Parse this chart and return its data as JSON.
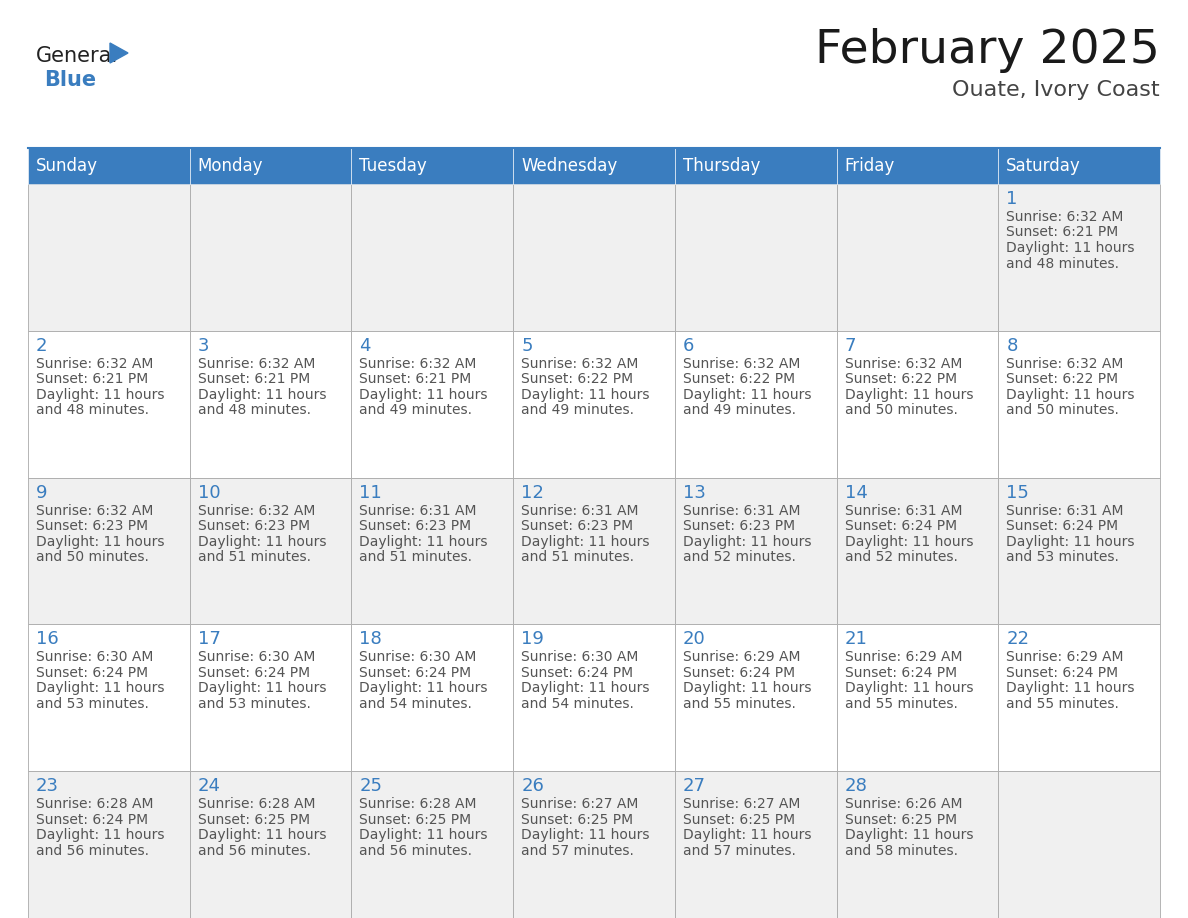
{
  "title": "February 2025",
  "subtitle": "Ouate, Ivory Coast",
  "header_color": "#3a7dbf",
  "header_text_color": "#ffffff",
  "cell_border_color": "#aaaaaa",
  "day_num_color": "#3a7dbf",
  "cell_text_color": "#555555",
  "alt_row_color": "#f0f0f0",
  "white_cell_color": "#ffffff",
  "bg_color": "#ffffff",
  "days_of_week": [
    "Sunday",
    "Monday",
    "Tuesday",
    "Wednesday",
    "Thursday",
    "Friday",
    "Saturday"
  ],
  "calendar": [
    [
      null,
      null,
      null,
      null,
      null,
      null,
      {
        "day": 1,
        "sunrise": "6:32 AM",
        "sunset": "6:21 PM",
        "daylight_h": "11 hours",
        "daylight_m": "and 48 minutes."
      }
    ],
    [
      {
        "day": 2,
        "sunrise": "6:32 AM",
        "sunset": "6:21 PM",
        "daylight_h": "11 hours",
        "daylight_m": "and 48 minutes."
      },
      {
        "day": 3,
        "sunrise": "6:32 AM",
        "sunset": "6:21 PM",
        "daylight_h": "11 hours",
        "daylight_m": "and 48 minutes."
      },
      {
        "day": 4,
        "sunrise": "6:32 AM",
        "sunset": "6:21 PM",
        "daylight_h": "11 hours",
        "daylight_m": "and 49 minutes."
      },
      {
        "day": 5,
        "sunrise": "6:32 AM",
        "sunset": "6:22 PM",
        "daylight_h": "11 hours",
        "daylight_m": "and 49 minutes."
      },
      {
        "day": 6,
        "sunrise": "6:32 AM",
        "sunset": "6:22 PM",
        "daylight_h": "11 hours",
        "daylight_m": "and 49 minutes."
      },
      {
        "day": 7,
        "sunrise": "6:32 AM",
        "sunset": "6:22 PM",
        "daylight_h": "11 hours",
        "daylight_m": "and 50 minutes."
      },
      {
        "day": 8,
        "sunrise": "6:32 AM",
        "sunset": "6:22 PM",
        "daylight_h": "11 hours",
        "daylight_m": "and 50 minutes."
      }
    ],
    [
      {
        "day": 9,
        "sunrise": "6:32 AM",
        "sunset": "6:23 PM",
        "daylight_h": "11 hours",
        "daylight_m": "and 50 minutes."
      },
      {
        "day": 10,
        "sunrise": "6:32 AM",
        "sunset": "6:23 PM",
        "daylight_h": "11 hours",
        "daylight_m": "and 51 minutes."
      },
      {
        "day": 11,
        "sunrise": "6:31 AM",
        "sunset": "6:23 PM",
        "daylight_h": "11 hours",
        "daylight_m": "and 51 minutes."
      },
      {
        "day": 12,
        "sunrise": "6:31 AM",
        "sunset": "6:23 PM",
        "daylight_h": "11 hours",
        "daylight_m": "and 51 minutes."
      },
      {
        "day": 13,
        "sunrise": "6:31 AM",
        "sunset": "6:23 PM",
        "daylight_h": "11 hours",
        "daylight_m": "and 52 minutes."
      },
      {
        "day": 14,
        "sunrise": "6:31 AM",
        "sunset": "6:24 PM",
        "daylight_h": "11 hours",
        "daylight_m": "and 52 minutes."
      },
      {
        "day": 15,
        "sunrise": "6:31 AM",
        "sunset": "6:24 PM",
        "daylight_h": "11 hours",
        "daylight_m": "and 53 minutes."
      }
    ],
    [
      {
        "day": 16,
        "sunrise": "6:30 AM",
        "sunset": "6:24 PM",
        "daylight_h": "11 hours",
        "daylight_m": "and 53 minutes."
      },
      {
        "day": 17,
        "sunrise": "6:30 AM",
        "sunset": "6:24 PM",
        "daylight_h": "11 hours",
        "daylight_m": "and 53 minutes."
      },
      {
        "day": 18,
        "sunrise": "6:30 AM",
        "sunset": "6:24 PM",
        "daylight_h": "11 hours",
        "daylight_m": "and 54 minutes."
      },
      {
        "day": 19,
        "sunrise": "6:30 AM",
        "sunset": "6:24 PM",
        "daylight_h": "11 hours",
        "daylight_m": "and 54 minutes."
      },
      {
        "day": 20,
        "sunrise": "6:29 AM",
        "sunset": "6:24 PM",
        "daylight_h": "11 hours",
        "daylight_m": "and 55 minutes."
      },
      {
        "day": 21,
        "sunrise": "6:29 AM",
        "sunset": "6:24 PM",
        "daylight_h": "11 hours",
        "daylight_m": "and 55 minutes."
      },
      {
        "day": 22,
        "sunrise": "6:29 AM",
        "sunset": "6:24 PM",
        "daylight_h": "11 hours",
        "daylight_m": "and 55 minutes."
      }
    ],
    [
      {
        "day": 23,
        "sunrise": "6:28 AM",
        "sunset": "6:24 PM",
        "daylight_h": "11 hours",
        "daylight_m": "and 56 minutes."
      },
      {
        "day": 24,
        "sunrise": "6:28 AM",
        "sunset": "6:25 PM",
        "daylight_h": "11 hours",
        "daylight_m": "and 56 minutes."
      },
      {
        "day": 25,
        "sunrise": "6:28 AM",
        "sunset": "6:25 PM",
        "daylight_h": "11 hours",
        "daylight_m": "and 56 minutes."
      },
      {
        "day": 26,
        "sunrise": "6:27 AM",
        "sunset": "6:25 PM",
        "daylight_h": "11 hours",
        "daylight_m": "and 57 minutes."
      },
      {
        "day": 27,
        "sunrise": "6:27 AM",
        "sunset": "6:25 PM",
        "daylight_h": "11 hours",
        "daylight_m": "and 57 minutes."
      },
      {
        "day": 28,
        "sunrise": "6:26 AM",
        "sunset": "6:25 PM",
        "daylight_h": "11 hours",
        "daylight_m": "and 58 minutes."
      },
      null
    ]
  ],
  "logo_general_color": "#222222",
  "logo_blue_color": "#3a7dbf",
  "logo_triangle_color": "#3a7dbf",
  "title_fontsize": 34,
  "subtitle_fontsize": 16,
  "header_fontsize": 12,
  "daynum_fontsize": 13,
  "cell_text_fontsize": 10
}
